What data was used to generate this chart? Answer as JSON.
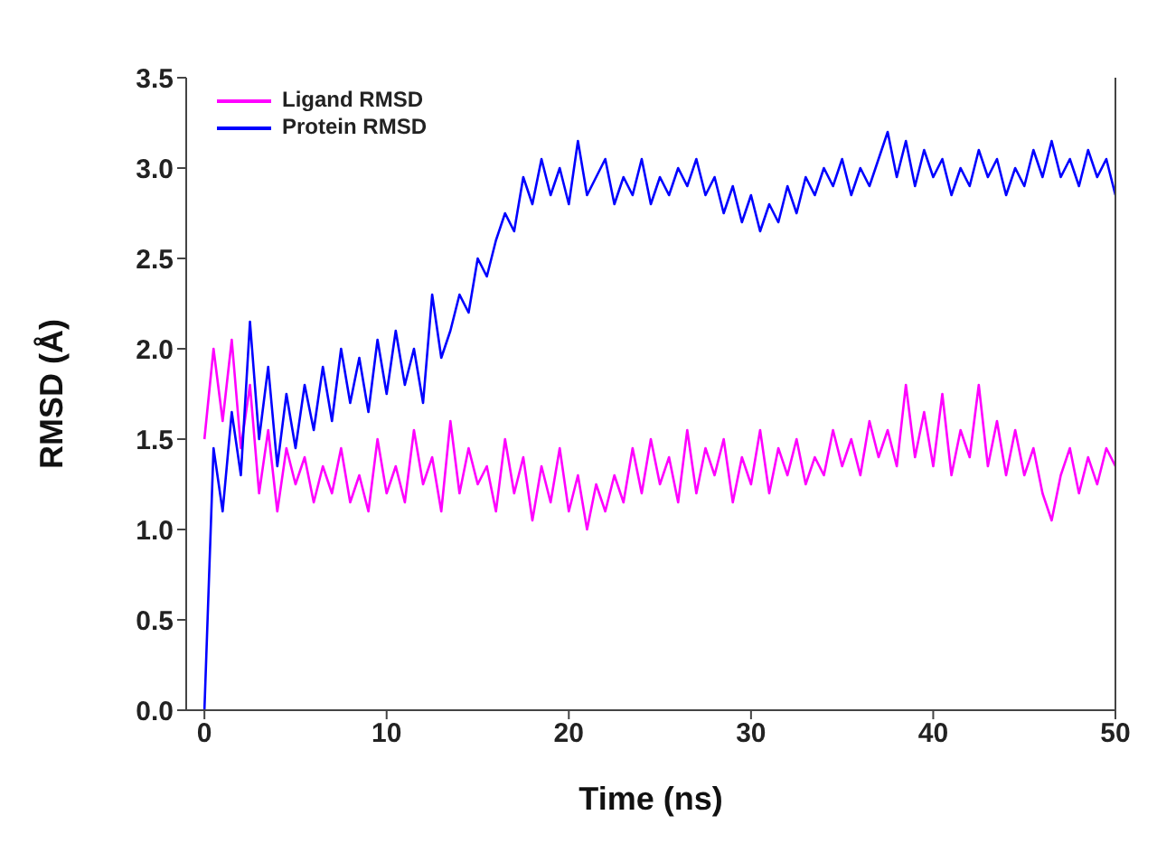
{
  "chart_data": {
    "type": "line",
    "xlabel": "Time (ns)",
    "ylabel": "RMSD (Å)",
    "x": [
      0,
      0.5,
      1,
      1.5,
      2,
      2.5,
      3,
      3.5,
      4,
      4.5,
      5,
      5.5,
      6,
      6.5,
      7,
      7.5,
      8,
      8.5,
      9,
      9.5,
      10,
      10.5,
      11,
      11.5,
      12,
      12.5,
      13,
      13.5,
      14,
      14.5,
      15,
      15.5,
      16,
      16.5,
      17,
      17.5,
      18,
      18.5,
      19,
      19.5,
      20,
      20.5,
      21,
      21.5,
      22,
      22.5,
      23,
      23.5,
      24,
      24.5,
      25,
      25.5,
      26,
      26.5,
      27,
      27.5,
      28,
      28.5,
      29,
      29.5,
      30,
      30.5,
      31,
      31.5,
      32,
      32.5,
      33,
      33.5,
      34,
      34.5,
      35,
      35.5,
      36,
      36.5,
      37,
      37.5,
      38,
      38.5,
      39,
      39.5,
      40,
      40.5,
      41,
      41.5,
      42,
      42.5,
      43,
      43.5,
      44,
      44.5,
      45,
      45.5,
      46,
      46.5,
      47,
      47.5,
      48,
      48.5,
      49,
      49.5,
      50
    ],
    "series": [
      {
        "name": "Ligand RMSD",
        "color": "#ff00ff",
        "values": [
          1.5,
          2.0,
          1.6,
          2.05,
          1.45,
          1.8,
          1.2,
          1.55,
          1.1,
          1.45,
          1.25,
          1.4,
          1.15,
          1.35,
          1.2,
          1.45,
          1.15,
          1.3,
          1.1,
          1.5,
          1.2,
          1.35,
          1.15,
          1.55,
          1.25,
          1.4,
          1.1,
          1.6,
          1.2,
          1.45,
          1.25,
          1.35,
          1.1,
          1.5,
          1.2,
          1.4,
          1.05,
          1.35,
          1.15,
          1.45,
          1.1,
          1.3,
          1.0,
          1.25,
          1.1,
          1.3,
          1.15,
          1.45,
          1.2,
          1.5,
          1.25,
          1.4,
          1.15,
          1.55,
          1.2,
          1.45,
          1.3,
          1.5,
          1.15,
          1.4,
          1.25,
          1.55,
          1.2,
          1.45,
          1.3,
          1.5,
          1.25,
          1.4,
          1.3,
          1.55,
          1.35,
          1.5,
          1.3,
          1.6,
          1.4,
          1.55,
          1.35,
          1.8,
          1.4,
          1.65,
          1.35,
          1.75,
          1.3,
          1.55,
          1.4,
          1.8,
          1.35,
          1.6,
          1.3,
          1.55,
          1.3,
          1.45,
          1.2,
          1.05,
          1.3,
          1.45,
          1.2,
          1.4,
          1.25,
          1.45,
          1.35
        ]
      },
      {
        "name": "Protein RMSD",
        "color": "#0000ff",
        "values": [
          0.0,
          1.45,
          1.1,
          1.65,
          1.3,
          2.15,
          1.5,
          1.9,
          1.35,
          1.75,
          1.45,
          1.8,
          1.55,
          1.9,
          1.6,
          2.0,
          1.7,
          1.95,
          1.65,
          2.05,
          1.75,
          2.1,
          1.8,
          2.0,
          1.7,
          2.3,
          1.95,
          2.1,
          2.3,
          2.2,
          2.5,
          2.4,
          2.6,
          2.75,
          2.65,
          2.95,
          2.8,
          3.05,
          2.85,
          3.0,
          2.8,
          3.15,
          2.85,
          2.95,
          3.05,
          2.8,
          2.95,
          2.85,
          3.05,
          2.8,
          2.95,
          2.85,
          3.0,
          2.9,
          3.05,
          2.85,
          2.95,
          2.75,
          2.9,
          2.7,
          2.85,
          2.65,
          2.8,
          2.7,
          2.9,
          2.75,
          2.95,
          2.85,
          3.0,
          2.9,
          3.05,
          2.85,
          3.0,
          2.9,
          3.05,
          3.2,
          2.95,
          3.15,
          2.9,
          3.1,
          2.95,
          3.05,
          2.85,
          3.0,
          2.9,
          3.1,
          2.95,
          3.05,
          2.85,
          3.0,
          2.9,
          3.1,
          2.95,
          3.15,
          2.95,
          3.05,
          2.9,
          3.1,
          2.95,
          3.05,
          2.85
        ]
      }
    ],
    "xlim": [
      -1,
      50
    ],
    "xticks": [
      0,
      10,
      20,
      30,
      40,
      50
    ],
    "ylim": [
      0,
      3.5
    ],
    "yticks": [
      {
        "value": 0,
        "label": "0.0"
      },
      0.5,
      {
        "value": 1,
        "label": "1.0"
      },
      1.5,
      {
        "value": 2,
        "label": "2.0"
      },
      2.5,
      {
        "value": 3,
        "label": "3.0"
      },
      3.5
    ],
    "grid": false,
    "legend": "top left",
    "marker": "none",
    "line_style": "solid"
  }
}
